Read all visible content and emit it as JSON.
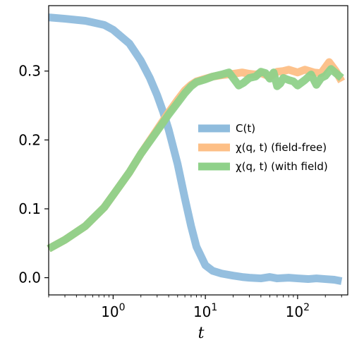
{
  "chart_data": {
    "type": "line",
    "title": "",
    "xlabel": "t",
    "ylabel": "",
    "xscale": "log",
    "xlim": [
      0.2,
      350
    ],
    "ylim": [
      -0.025,
      0.395
    ],
    "x_ticks": [
      {
        "value": 1,
        "base": "10",
        "exp": "0"
      },
      {
        "value": 10,
        "base": "10",
        "exp": "1"
      },
      {
        "value": 100,
        "base": "10",
        "exp": "2"
      }
    ],
    "y_ticks": [
      {
        "value": 0.0,
        "label": "0.0"
      },
      {
        "value": 0.1,
        "label": "0.1"
      },
      {
        "value": 0.2,
        "label": "0.2"
      },
      {
        "value": 0.3,
        "label": "0.3"
      }
    ],
    "legend_position": "center-right",
    "grid": false,
    "series": [
      {
        "name": "C(t)",
        "color": "#8fbcdd",
        "x": [
          0.2,
          0.3,
          0.5,
          0.8,
          1.0,
          1.5,
          2.0,
          2.5,
          3.0,
          3.5,
          4.0,
          5.0,
          6.0,
          7.0,
          8.0,
          10,
          12,
          15,
          20,
          25,
          30,
          40,
          50,
          60,
          80,
          100,
          130,
          160,
          200,
          250,
          300
        ],
        "y": [
          0.378,
          0.376,
          0.373,
          0.367,
          0.36,
          0.34,
          0.315,
          0.29,
          0.265,
          0.24,
          0.215,
          0.165,
          0.115,
          0.075,
          0.045,
          0.018,
          0.01,
          0.006,
          0.003,
          0.001,
          0.0,
          -0.001,
          0.001,
          -0.001,
          0.0,
          -0.001,
          -0.002,
          -0.001,
          -0.002,
          -0.003,
          -0.005
        ]
      },
      {
        "name": "χ(q, t) (field-free)",
        "color": "#fdbf86",
        "x": [
          0.2,
          0.3,
          0.5,
          0.8,
          1.0,
          1.5,
          2.0,
          3.0,
          4.0,
          5.0,
          6.0,
          7.0,
          8.0,
          10,
          12,
          15,
          20,
          25,
          30,
          35,
          40,
          50,
          60,
          70,
          80,
          100,
          120,
          150,
          180,
          220,
          260,
          300
        ],
        "y": [
          0.042,
          0.055,
          0.075,
          0.102,
          0.12,
          0.153,
          0.18,
          0.215,
          0.24,
          0.258,
          0.272,
          0.28,
          0.285,
          0.289,
          0.292,
          0.294,
          0.296,
          0.298,
          0.296,
          0.295,
          0.297,
          0.292,
          0.299,
          0.3,
          0.302,
          0.298,
          0.302,
          0.298,
          0.297,
          0.313,
          0.3,
          0.285
        ]
      },
      {
        "name": "χ(q, t) (with field)",
        "color": "#8fd18a",
        "x": [
          0.2,
          0.3,
          0.5,
          0.8,
          1.0,
          1.5,
          2.0,
          3.0,
          4.0,
          5.0,
          6.0,
          7.0,
          8.0,
          10,
          12,
          15,
          18,
          20,
          23,
          26,
          30,
          35,
          40,
          45,
          50,
          55,
          60,
          65,
          70,
          80,
          90,
          100,
          120,
          140,
          160,
          180,
          200,
          230,
          260,
          300
        ],
        "y": [
          0.042,
          0.055,
          0.075,
          0.102,
          0.12,
          0.153,
          0.18,
          0.213,
          0.237,
          0.254,
          0.268,
          0.278,
          0.284,
          0.288,
          0.292,
          0.295,
          0.298,
          0.29,
          0.279,
          0.283,
          0.29,
          0.292,
          0.299,
          0.297,
          0.289,
          0.298,
          0.278,
          0.282,
          0.29,
          0.287,
          0.285,
          0.279,
          0.287,
          0.295,
          0.28,
          0.29,
          0.293,
          0.303,
          0.297,
          0.29
        ]
      }
    ]
  }
}
